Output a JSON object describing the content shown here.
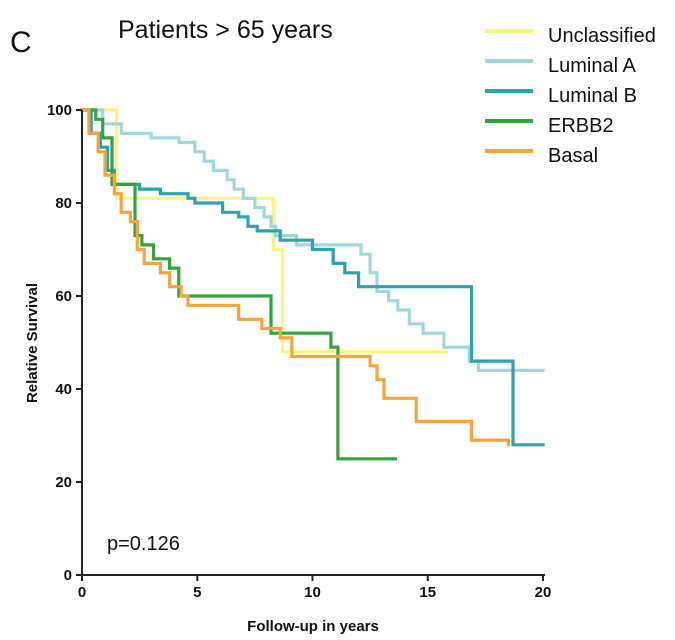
{
  "panel_letter": "C",
  "colors": {
    "Unclassified": "#fdf57a",
    "Luminal A": "#9fd8dc",
    "Luminal B": "#2ca4b0",
    "ERBB2": "#33a33a",
    "Basal": "#f7a43c"
  },
  "chart_data": {
    "type": "line",
    "step": true,
    "title": "Patients > 65 years",
    "xlabel": "Follow-up in years",
    "ylabel": "Relative Survival",
    "xlim": [
      0,
      20
    ],
    "ylim": [
      0,
      100
    ],
    "xticks": [
      0,
      5,
      10,
      15,
      20
    ],
    "yticks": [
      0,
      20,
      40,
      60,
      80,
      100
    ],
    "legend_position": "top-right",
    "annotation": "p=0.126",
    "series": [
      {
        "name": "Unclassified",
        "points": [
          [
            0,
            100
          ],
          [
            1.5,
            100
          ],
          [
            1.5,
            81
          ],
          [
            8.3,
            81
          ],
          [
            8.3,
            70
          ],
          [
            8.7,
            70
          ],
          [
            8.7,
            48
          ],
          [
            15.8,
            48
          ]
        ]
      },
      {
        "name": "Luminal A",
        "points": [
          [
            0,
            100
          ],
          [
            0.9,
            100
          ],
          [
            0.9,
            97
          ],
          [
            1.7,
            97
          ],
          [
            1.7,
            95
          ],
          [
            3,
            95
          ],
          [
            3,
            94
          ],
          [
            4.2,
            94
          ],
          [
            4.2,
            93
          ],
          [
            4.9,
            93
          ],
          [
            4.9,
            91
          ],
          [
            5.3,
            91
          ],
          [
            5.3,
            89
          ],
          [
            5.7,
            89
          ],
          [
            5.7,
            87
          ],
          [
            6.3,
            87
          ],
          [
            6.3,
            85
          ],
          [
            6.6,
            85
          ],
          [
            6.6,
            83
          ],
          [
            7,
            83
          ],
          [
            7,
            81
          ],
          [
            7.5,
            81
          ],
          [
            7.5,
            79
          ],
          [
            7.9,
            79
          ],
          [
            7.9,
            77
          ],
          [
            8.2,
            77
          ],
          [
            8.2,
            75
          ],
          [
            8.4,
            75
          ],
          [
            8.4,
            73
          ],
          [
            9.3,
            73
          ],
          [
            9.3,
            71
          ],
          [
            12.1,
            71
          ],
          [
            12.1,
            69
          ],
          [
            12.5,
            69
          ],
          [
            12.5,
            65
          ],
          [
            12.8,
            65
          ],
          [
            12.8,
            61
          ],
          [
            13.3,
            61
          ],
          [
            13.3,
            59
          ],
          [
            13.7,
            59
          ],
          [
            13.7,
            57
          ],
          [
            14.2,
            57
          ],
          [
            14.2,
            54
          ],
          [
            14.8,
            54
          ],
          [
            14.8,
            52
          ],
          [
            15.7,
            52
          ],
          [
            15.7,
            49
          ],
          [
            16.8,
            49
          ],
          [
            16.8,
            46
          ],
          [
            17.2,
            46
          ],
          [
            17.2,
            44
          ],
          [
            20,
            44
          ]
        ]
      },
      {
        "name": "Luminal B",
        "points": [
          [
            0,
            100
          ],
          [
            0.4,
            100
          ],
          [
            0.4,
            95
          ],
          [
            0.8,
            95
          ],
          [
            0.8,
            92
          ],
          [
            1.1,
            92
          ],
          [
            1.1,
            87
          ],
          [
            1.4,
            87
          ],
          [
            1.4,
            84
          ],
          [
            2.5,
            84
          ],
          [
            2.5,
            83
          ],
          [
            3.4,
            83
          ],
          [
            3.4,
            82
          ],
          [
            4.6,
            82
          ],
          [
            4.6,
            81
          ],
          [
            4.9,
            81
          ],
          [
            4.9,
            80
          ],
          [
            6.1,
            80
          ],
          [
            6.1,
            78
          ],
          [
            6.8,
            78
          ],
          [
            6.8,
            77
          ],
          [
            7.2,
            77
          ],
          [
            7.2,
            75
          ],
          [
            7.6,
            75
          ],
          [
            7.6,
            74
          ],
          [
            8.6,
            74
          ],
          [
            8.6,
            72
          ],
          [
            10,
            72
          ],
          [
            10,
            70
          ],
          [
            10.9,
            70
          ],
          [
            10.9,
            67
          ],
          [
            11.4,
            67
          ],
          [
            11.4,
            65
          ],
          [
            12,
            65
          ],
          [
            12,
            62
          ],
          [
            16.9,
            62
          ],
          [
            16.9,
            46
          ],
          [
            18.7,
            46
          ],
          [
            18.7,
            28
          ],
          [
            20,
            28
          ]
        ]
      },
      {
        "name": "ERBB2",
        "points": [
          [
            0,
            100
          ],
          [
            0.6,
            100
          ],
          [
            0.6,
            98
          ],
          [
            0.9,
            98
          ],
          [
            0.9,
            94
          ],
          [
            1.3,
            94
          ],
          [
            1.3,
            84
          ],
          [
            2.3,
            84
          ],
          [
            2.3,
            73
          ],
          [
            2.6,
            73
          ],
          [
            2.6,
            71
          ],
          [
            3.1,
            71
          ],
          [
            3.1,
            68
          ],
          [
            3.8,
            68
          ],
          [
            3.8,
            66
          ],
          [
            4.2,
            66
          ],
          [
            4.2,
            60
          ],
          [
            8.2,
            60
          ],
          [
            8.2,
            52
          ],
          [
            10.8,
            52
          ],
          [
            10.8,
            49
          ],
          [
            11.1,
            49
          ],
          [
            11.1,
            25
          ],
          [
            13.6,
            25
          ]
        ]
      },
      {
        "name": "Basal",
        "points": [
          [
            0,
            100
          ],
          [
            0.3,
            100
          ],
          [
            0.3,
            95
          ],
          [
            0.7,
            95
          ],
          [
            0.7,
            91
          ],
          [
            1,
            91
          ],
          [
            1,
            86
          ],
          [
            1.4,
            86
          ],
          [
            1.4,
            82
          ],
          [
            1.7,
            82
          ],
          [
            1.7,
            78
          ],
          [
            2.1,
            78
          ],
          [
            2.1,
            76
          ],
          [
            2.4,
            76
          ],
          [
            2.4,
            70
          ],
          [
            2.7,
            70
          ],
          [
            2.7,
            67
          ],
          [
            3.4,
            67
          ],
          [
            3.4,
            65
          ],
          [
            3.8,
            65
          ],
          [
            3.8,
            62
          ],
          [
            4.3,
            62
          ],
          [
            4.3,
            60
          ],
          [
            4.6,
            60
          ],
          [
            4.6,
            58
          ],
          [
            6.8,
            58
          ],
          [
            6.8,
            55
          ],
          [
            7.8,
            55
          ],
          [
            7.8,
            53
          ],
          [
            8.6,
            53
          ],
          [
            8.6,
            51
          ],
          [
            9.1,
            51
          ],
          [
            9.1,
            47
          ],
          [
            12.5,
            47
          ],
          [
            12.5,
            45
          ],
          [
            12.8,
            45
          ],
          [
            12.8,
            42
          ],
          [
            13.1,
            42
          ],
          [
            13.1,
            38
          ],
          [
            14.5,
            38
          ],
          [
            14.5,
            33
          ],
          [
            16.9,
            33
          ],
          [
            16.9,
            29
          ],
          [
            18.5,
            29
          ],
          [
            18.5,
            28
          ]
        ]
      }
    ]
  }
}
